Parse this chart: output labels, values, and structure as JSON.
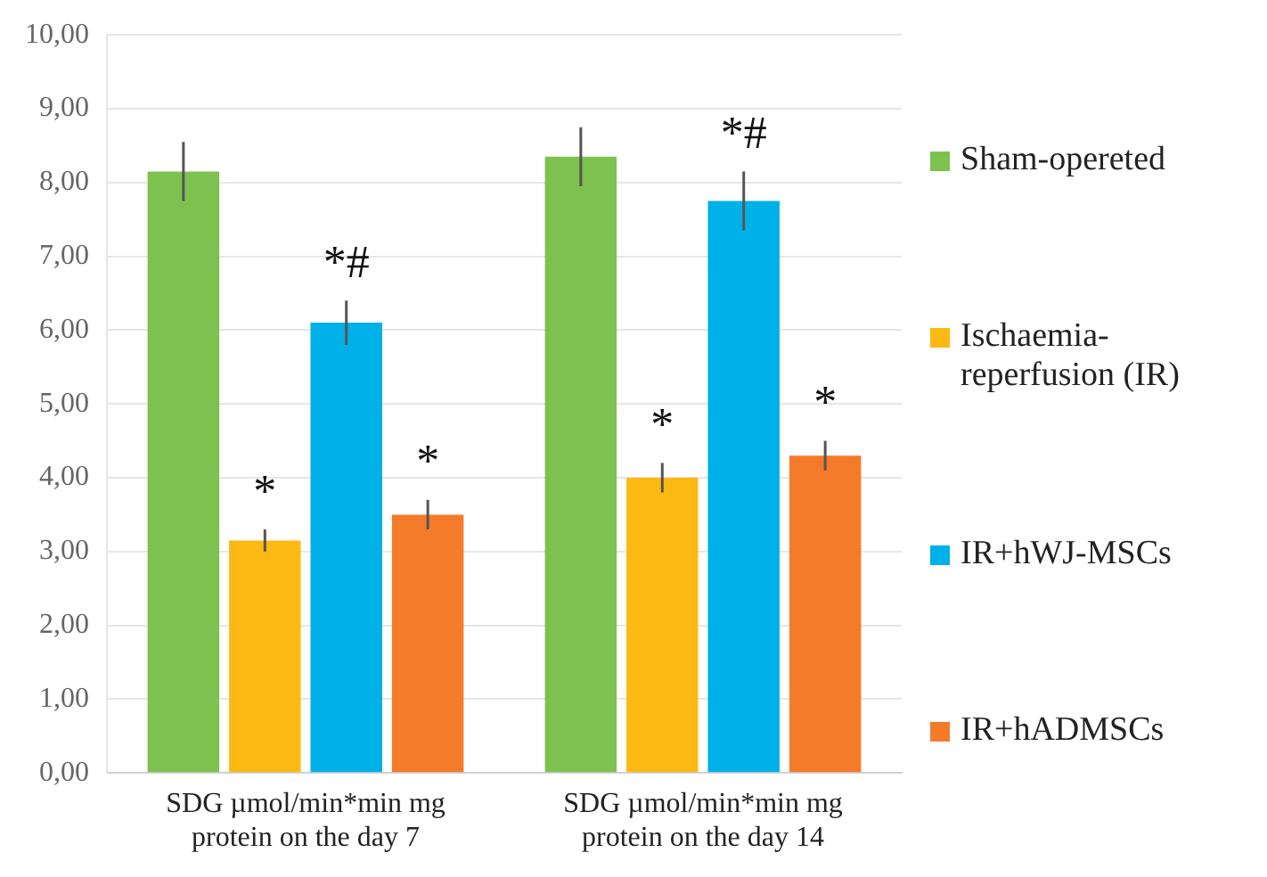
{
  "chart_data": {
    "type": "bar",
    "categories": [
      "SDG µmol/min*min mg protein on the day 7",
      "SDG µmol/min*min mg protein on the day 14"
    ],
    "series": [
      {
        "name": "Sham-opereted",
        "color": "#7dc14f",
        "values": [
          8.15,
          8.35
        ],
        "errors": [
          0.4,
          0.4
        ]
      },
      {
        "name": "Ischaemia-reperfusion (IR)",
        "color": "#fdb913",
        "values": [
          3.15,
          4.0
        ],
        "errors": [
          0.15,
          0.2
        ]
      },
      {
        "name": "IR+hWJ-MSCs",
        "color": "#00b0e8",
        "values": [
          6.1,
          7.75
        ],
        "errors": [
          0.3,
          0.4
        ]
      },
      {
        "name": "IR+hADMSCs",
        "color": "#f47b2a",
        "values": [
          3.5,
          4.3
        ],
        "errors": [
          0.2,
          0.2
        ]
      }
    ],
    "ylim": [
      0,
      10
    ],
    "yticks": [
      {
        "value": 0,
        "label": "0,00"
      },
      {
        "value": 1,
        "label": "1,00"
      },
      {
        "value": 2,
        "label": "2,00"
      },
      {
        "value": 3,
        "label": "3,00"
      },
      {
        "value": 4,
        "label": "4,00"
      },
      {
        "value": 5,
        "label": "5,00"
      },
      {
        "value": 6,
        "label": "6,00"
      },
      {
        "value": 7,
        "label": "7,00"
      },
      {
        "value": 8,
        "label": "8,00"
      },
      {
        "value": 9,
        "label": "9,00"
      },
      {
        "value": 10,
        "label": "10,00"
      }
    ],
    "annotations": [
      {
        "text": "*",
        "x": "SDG µmol/min*min mg protein on the day 7",
        "y": 3.15
      },
      {
        "text": "*#",
        "x": "SDG µmol/min*min mg protein on the day 7",
        "y": 6.1
      },
      {
        "text": "*",
        "x": "SDG µmol/min*min mg protein on the day 7",
        "y": 3.5
      },
      {
        "text": "*",
        "x": "SDG µmol/min*min mg protein on the day 14",
        "y": 4.0
      },
      {
        "text": "*#",
        "x": "SDG µmol/min*min mg protein on the day 14",
        "y": 7.75
      },
      {
        "text": "*",
        "x": "SDG µmol/min*min mg protein on the day 14",
        "y": 4.3
      }
    ],
    "grid": "y",
    "legend": "right"
  }
}
